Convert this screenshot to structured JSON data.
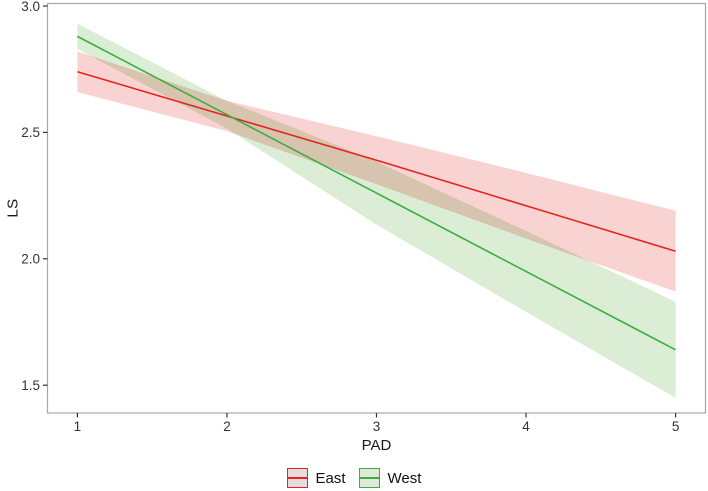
{
  "chart_data": {
    "type": "line",
    "title": "",
    "xlabel": "PAD",
    "ylabel": "LS",
    "xlim": [
      0.8,
      5.2
    ],
    "ylim": [
      1.39,
      3.01
    ],
    "x_ticks": [
      1,
      2,
      3,
      4,
      5
    ],
    "y_ticks": [
      1.5,
      2.0,
      2.5,
      3.0
    ],
    "grid": "none",
    "background": "#ffffff",
    "panel_border_color": "#a8a8a8",
    "tick_color": "#333333",
    "tick_label_color": "#333333",
    "axis_title_color": "#1a1a1a",
    "legend_position": "bottom",
    "x": [
      1,
      2,
      3,
      4,
      5
    ],
    "series": [
      {
        "name": "East",
        "line_color": "#e5231f",
        "ribbon_color": "#f8d3d1",
        "key_fill": "#e9dcdc",
        "values": [
          2.74,
          2.565,
          2.39,
          2.21,
          2.03
        ],
        "ci_upper": [
          2.82,
          2.625,
          2.485,
          2.34,
          2.19
        ],
        "ci_lower": [
          2.66,
          2.505,
          2.295,
          2.08,
          1.87
        ]
      },
      {
        "name": "West",
        "line_color": "#3bad43",
        "ribbon_color": "#dcedd6",
        "key_fill": "#e0e8da",
        "values": [
          2.88,
          2.57,
          2.26,
          1.95,
          1.64
        ],
        "ci_upper": [
          2.93,
          2.625,
          2.385,
          2.11,
          1.83
        ],
        "ci_lower": [
          2.83,
          2.515,
          2.135,
          1.79,
          1.45
        ]
      }
    ]
  }
}
